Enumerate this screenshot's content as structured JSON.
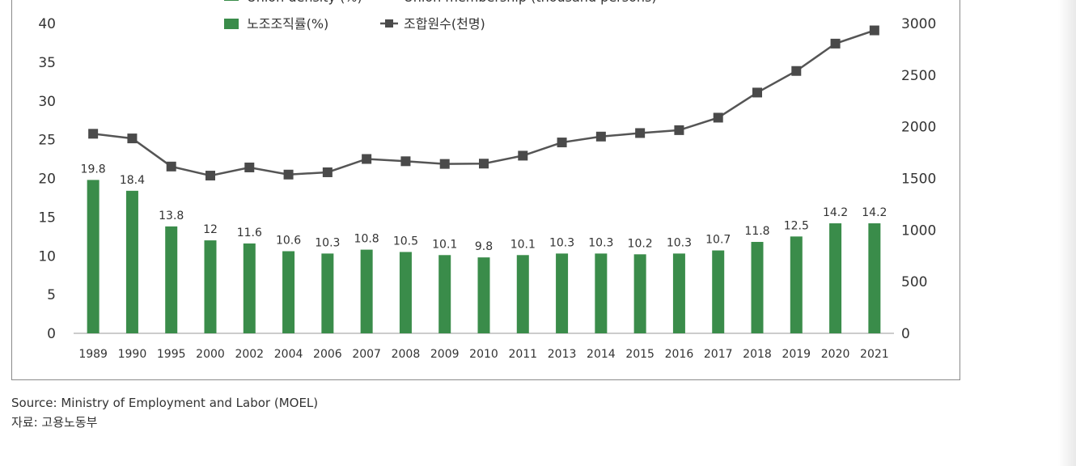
{
  "chart_data": {
    "type": "bar",
    "title": "",
    "categories": [
      "1989",
      "1990",
      "1995",
      "2000",
      "2002",
      "2004",
      "2006",
      "2007",
      "2008",
      "2009",
      "2010",
      "2011",
      "2013",
      "2014",
      "2015",
      "2016",
      "2017",
      "2018",
      "2019",
      "2020",
      "2021"
    ],
    "series": [
      {
        "name_en": "Union density (%)",
        "name": "노조조직률(%)",
        "type": "bar",
        "axis": "left",
        "color": "#3a8c4a",
        "values": [
          19.8,
          18.4,
          13.8,
          12,
          11.6,
          10.6,
          10.3,
          10.8,
          10.5,
          10.1,
          9.8,
          10.1,
          10.3,
          10.3,
          10.2,
          10.3,
          10.7,
          11.8,
          12.5,
          14.2,
          14.2
        ],
        "labels": [
          "19.8",
          "18.4",
          "13.8",
          "12",
          "11.6",
          "10.6",
          "10.3",
          "10.8",
          "10.5",
          "10.1",
          "9.8",
          "10.1",
          "10.3",
          "10.3",
          "10.2",
          "10.3",
          "10.7",
          "11.8",
          "12.5",
          "14.2",
          "14.2"
        ]
      },
      {
        "name_en": "Union membership (thousand persons)",
        "name": "조합원수(천명)",
        "type": "line",
        "axis": "right",
        "color": "#555555",
        "marker": "square",
        "values": [
          1932,
          1887,
          1615,
          1527,
          1606,
          1537,
          1559,
          1688,
          1666,
          1640,
          1643,
          1720,
          1848,
          1905,
          1939,
          1967,
          2088,
          2331,
          2540,
          2805,
          2933
        ]
      }
    ],
    "y_left": {
      "ylim": [
        0,
        40
      ],
      "ticks": [
        "0",
        "5",
        "10",
        "15",
        "20",
        "25",
        "30",
        "35",
        "40"
      ]
    },
    "y_right": {
      "ylim": [
        0,
        3000
      ],
      "ticks": [
        "0",
        "500",
        "1000",
        "1500",
        "2000",
        "2500",
        "3000"
      ]
    },
    "grid": false,
    "legend_position": "top-center"
  },
  "source": {
    "en": "Source: Ministry of Employment and Labor (MOEL)",
    "ko": "자료: 고용노동부"
  }
}
